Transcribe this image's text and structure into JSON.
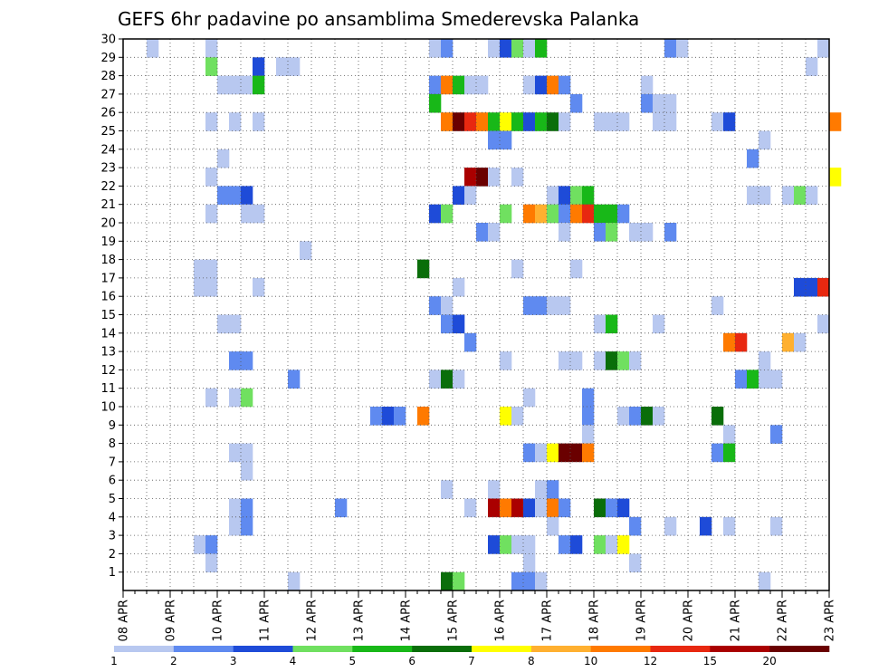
{
  "chart_data": {
    "type": "heatmap",
    "title": "GEFS 6hr padavine po ansamblima Smederevska Palanka",
    "y_ticks": [
      "1",
      "2",
      "3",
      "4",
      "5",
      "6",
      "7",
      "8",
      "9",
      "10",
      "11",
      "12",
      "13",
      "14",
      "15",
      "16",
      "17",
      "18",
      "19",
      "20",
      "21",
      "22",
      "23",
      "24",
      "25",
      "26",
      "27",
      "28",
      "29",
      "30"
    ],
    "x_ticks": [
      "08 APR",
      "09 APR",
      "10 APR",
      "11 APR",
      "12 APR",
      "13 APR",
      "14 APR",
      "15 APR",
      "16 APR",
      "17 APR",
      "18 APR",
      "19 APR",
      "20 APR",
      "21 APR",
      "22 APR",
      "23 APR"
    ],
    "x_range": [
      "08 APR 00:00",
      "23 APR 00:00"
    ],
    "y_range": [
      0,
      30
    ],
    "grid": true,
    "colorbar": {
      "levels": [
        "1",
        "2",
        "3",
        "4",
        "5",
        "6",
        "7",
        "8",
        "10",
        "12",
        "15",
        "20"
      ],
      "colors": [
        "#b8c8f0",
        "#5f8af0",
        "#1e4bd8",
        "#70e060",
        "#18b818",
        "#0a6e0a",
        "#ffff00",
        "#ffb030",
        "#ff7a00",
        "#e82810",
        "#aa0000",
        "#6a0000"
      ]
    },
    "cells": [
      [
        30,
        2,
        1
      ],
      [
        30,
        7,
        1
      ],
      [
        30,
        26,
        1
      ],
      [
        30,
        27,
        2
      ],
      [
        30,
        31,
        1
      ],
      [
        30,
        32,
        3
      ],
      [
        30,
        33,
        4
      ],
      [
        30,
        34,
        1
      ],
      [
        30,
        35,
        5
      ],
      [
        30,
        46,
        2
      ],
      [
        30,
        47,
        1
      ],
      [
        30,
        59,
        1
      ],
      [
        29,
        7,
        4
      ],
      [
        29,
        11,
        3
      ],
      [
        29,
        13,
        1
      ],
      [
        29,
        14,
        1
      ],
      [
        29,
        58,
        1
      ],
      [
        28,
        8,
        1
      ],
      [
        28,
        9,
        1
      ],
      [
        28,
        10,
        1
      ],
      [
        28,
        11,
        5
      ],
      [
        28,
        26,
        2
      ],
      [
        28,
        27,
        9
      ],
      [
        28,
        28,
        5
      ],
      [
        28,
        29,
        1
      ],
      [
        28,
        30,
        1
      ],
      [
        28,
        34,
        1
      ],
      [
        28,
        35,
        3
      ],
      [
        28,
        36,
        9
      ],
      [
        28,
        37,
        2
      ],
      [
        28,
        44,
        1
      ],
      [
        27,
        26,
        5
      ],
      [
        27,
        38,
        2
      ],
      [
        27,
        44,
        2
      ],
      [
        27,
        45,
        1
      ],
      [
        27,
        46,
        1
      ],
      [
        26,
        7,
        1
      ],
      [
        26,
        9,
        1
      ],
      [
        26,
        11,
        1
      ],
      [
        26,
        27,
        9
      ],
      [
        26,
        28,
        12
      ],
      [
        26,
        29,
        10
      ],
      [
        26,
        30,
        9
      ],
      [
        26,
        31,
        5
      ],
      [
        26,
        32,
        7
      ],
      [
        26,
        33,
        5
      ],
      [
        26,
        34,
        3
      ],
      [
        26,
        35,
        5
      ],
      [
        26,
        36,
        6
      ],
      [
        26,
        37,
        1
      ],
      [
        26,
        40,
        1
      ],
      [
        26,
        41,
        1
      ],
      [
        26,
        42,
        1
      ],
      [
        26,
        45,
        1
      ],
      [
        26,
        46,
        1
      ],
      [
        26,
        50,
        1
      ],
      [
        26,
        51,
        3
      ],
      [
        26,
        60,
        9
      ],
      [
        25,
        31,
        2
      ],
      [
        25,
        32,
        2
      ],
      [
        25,
        54,
        1
      ],
      [
        24,
        8,
        1
      ],
      [
        24,
        53,
        2
      ],
      [
        23,
        7,
        1
      ],
      [
        23,
        29,
        11
      ],
      [
        23,
        30,
        12
      ],
      [
        23,
        31,
        1
      ],
      [
        23,
        33,
        1
      ],
      [
        23,
        60,
        7
      ],
      [
        22,
        8,
        2
      ],
      [
        22,
        9,
        2
      ],
      [
        22,
        10,
        3
      ],
      [
        22,
        28,
        3
      ],
      [
        22,
        29,
        1
      ],
      [
        22,
        36,
        1
      ],
      [
        22,
        37,
        3
      ],
      [
        22,
        38,
        4
      ],
      [
        22,
        39,
        5
      ],
      [
        22,
        53,
        1
      ],
      [
        22,
        54,
        1
      ],
      [
        22,
        56,
        1
      ],
      [
        22,
        57,
        4
      ],
      [
        22,
        58,
        1
      ],
      [
        21,
        7,
        1
      ],
      [
        21,
        10,
        1
      ],
      [
        21,
        11,
        1
      ],
      [
        21,
        26,
        3
      ],
      [
        21,
        27,
        4
      ],
      [
        21,
        32,
        4
      ],
      [
        21,
        34,
        9
      ],
      [
        21,
        35,
        8
      ],
      [
        21,
        36,
        4
      ],
      [
        21,
        37,
        2
      ],
      [
        21,
        38,
        9
      ],
      [
        21,
        39,
        10
      ],
      [
        21,
        40,
        5
      ],
      [
        21,
        41,
        5
      ],
      [
        21,
        42,
        2
      ],
      [
        20,
        30,
        2
      ],
      [
        20,
        31,
        1
      ],
      [
        20,
        37,
        1
      ],
      [
        20,
        40,
        2
      ],
      [
        20,
        41,
        4
      ],
      [
        20,
        43,
        1
      ],
      [
        20,
        44,
        1
      ],
      [
        20,
        46,
        2
      ],
      [
        19,
        15,
        1
      ],
      [
        18,
        6,
        1
      ],
      [
        18,
        7,
        1
      ],
      [
        18,
        25,
        6
      ],
      [
        18,
        33,
        1
      ],
      [
        18,
        38,
        1
      ],
      [
        17,
        6,
        1
      ],
      [
        17,
        7,
        1
      ],
      [
        17,
        11,
        1
      ],
      [
        17,
        28,
        1
      ],
      [
        17,
        57,
        3
      ],
      [
        17,
        58,
        3
      ],
      [
        17,
        59,
        10
      ],
      [
        16,
        26,
        2
      ],
      [
        16,
        27,
        1
      ],
      [
        16,
        34,
        2
      ],
      [
        16,
        35,
        2
      ],
      [
        16,
        36,
        1
      ],
      [
        16,
        37,
        1
      ],
      [
        16,
        50,
        1
      ],
      [
        15,
        8,
        1
      ],
      [
        15,
        9,
        1
      ],
      [
        15,
        27,
        2
      ],
      [
        15,
        28,
        3
      ],
      [
        15,
        40,
        1
      ],
      [
        15,
        41,
        5
      ],
      [
        15,
        45,
        1
      ],
      [
        15,
        59,
        1
      ],
      [
        14,
        29,
        2
      ],
      [
        14,
        51,
        9
      ],
      [
        14,
        52,
        10
      ],
      [
        14,
        56,
        8
      ],
      [
        14,
        57,
        1
      ],
      [
        13,
        9,
        2
      ],
      [
        13,
        10,
        2
      ],
      [
        13,
        32,
        1
      ],
      [
        13,
        37,
        1
      ],
      [
        13,
        38,
        1
      ],
      [
        13,
        40,
        1
      ],
      [
        13,
        41,
        6
      ],
      [
        13,
        42,
        4
      ],
      [
        13,
        43,
        1
      ],
      [
        13,
        54,
        1
      ],
      [
        12,
        14,
        2
      ],
      [
        12,
        26,
        1
      ],
      [
        12,
        27,
        6
      ],
      [
        12,
        28,
        1
      ],
      [
        12,
        52,
        2
      ],
      [
        12,
        53,
        5
      ],
      [
        12,
        54,
        1
      ],
      [
        12,
        55,
        1
      ],
      [
        11,
        7,
        1
      ],
      [
        11,
        9,
        1
      ],
      [
        11,
        10,
        4
      ],
      [
        11,
        34,
        1
      ],
      [
        11,
        39,
        2
      ],
      [
        10,
        21,
        2
      ],
      [
        10,
        22,
        3
      ],
      [
        10,
        23,
        2
      ],
      [
        10,
        25,
        9
      ],
      [
        10,
        32,
        7
      ],
      [
        10,
        33,
        1
      ],
      [
        10,
        39,
        2
      ],
      [
        10,
        42,
        1
      ],
      [
        10,
        43,
        2
      ],
      [
        10,
        44,
        6
      ],
      [
        10,
        45,
        1
      ],
      [
        10,
        50,
        6
      ],
      [
        9,
        39,
        1
      ],
      [
        9,
        51,
        1
      ],
      [
        9,
        55,
        2
      ],
      [
        8,
        9,
        1
      ],
      [
        8,
        10,
        1
      ],
      [
        8,
        34,
        2
      ],
      [
        8,
        35,
        1
      ],
      [
        8,
        36,
        7
      ],
      [
        8,
        37,
        12
      ],
      [
        8,
        38,
        12
      ],
      [
        8,
        39,
        9
      ],
      [
        8,
        50,
        2
      ],
      [
        8,
        51,
        5
      ],
      [
        7,
        10,
        1
      ],
      [
        6,
        27,
        1
      ],
      [
        6,
        31,
        1
      ],
      [
        6,
        35,
        1
      ],
      [
        6,
        36,
        2
      ],
      [
        5,
        9,
        1
      ],
      [
        5,
        10,
        2
      ],
      [
        5,
        18,
        2
      ],
      [
        5,
        29,
        1
      ],
      [
        5,
        31,
        11
      ],
      [
        5,
        32,
        9
      ],
      [
        5,
        33,
        11
      ],
      [
        5,
        34,
        3
      ],
      [
        5,
        35,
        1
      ],
      [
        5,
        36,
        9
      ],
      [
        5,
        37,
        2
      ],
      [
        5,
        40,
        6
      ],
      [
        5,
        41,
        2
      ],
      [
        5,
        42,
        3
      ],
      [
        4,
        9,
        1
      ],
      [
        4,
        10,
        2
      ],
      [
        4,
        36,
        1
      ],
      [
        4,
        43,
        2
      ],
      [
        4,
        46,
        1
      ],
      [
        4,
        49,
        3
      ],
      [
        4,
        51,
        1
      ],
      [
        4,
        55,
        1
      ],
      [
        3,
        6,
        1
      ],
      [
        3,
        7,
        2
      ],
      [
        3,
        31,
        3
      ],
      [
        3,
        32,
        4
      ],
      [
        3,
        33,
        1
      ],
      [
        3,
        34,
        1
      ],
      [
        3,
        37,
        2
      ],
      [
        3,
        38,
        3
      ],
      [
        3,
        40,
        4
      ],
      [
        3,
        41,
        1
      ],
      [
        3,
        42,
        7
      ],
      [
        2,
        7,
        1
      ],
      [
        2,
        34,
        1
      ],
      [
        2,
        43,
        1
      ],
      [
        1,
        14,
        1
      ],
      [
        1,
        27,
        6
      ],
      [
        1,
        28,
        4
      ],
      [
        1,
        33,
        2
      ],
      [
        1,
        34,
        2
      ],
      [
        1,
        35,
        1
      ],
      [
        1,
        54,
        1
      ]
    ]
  }
}
